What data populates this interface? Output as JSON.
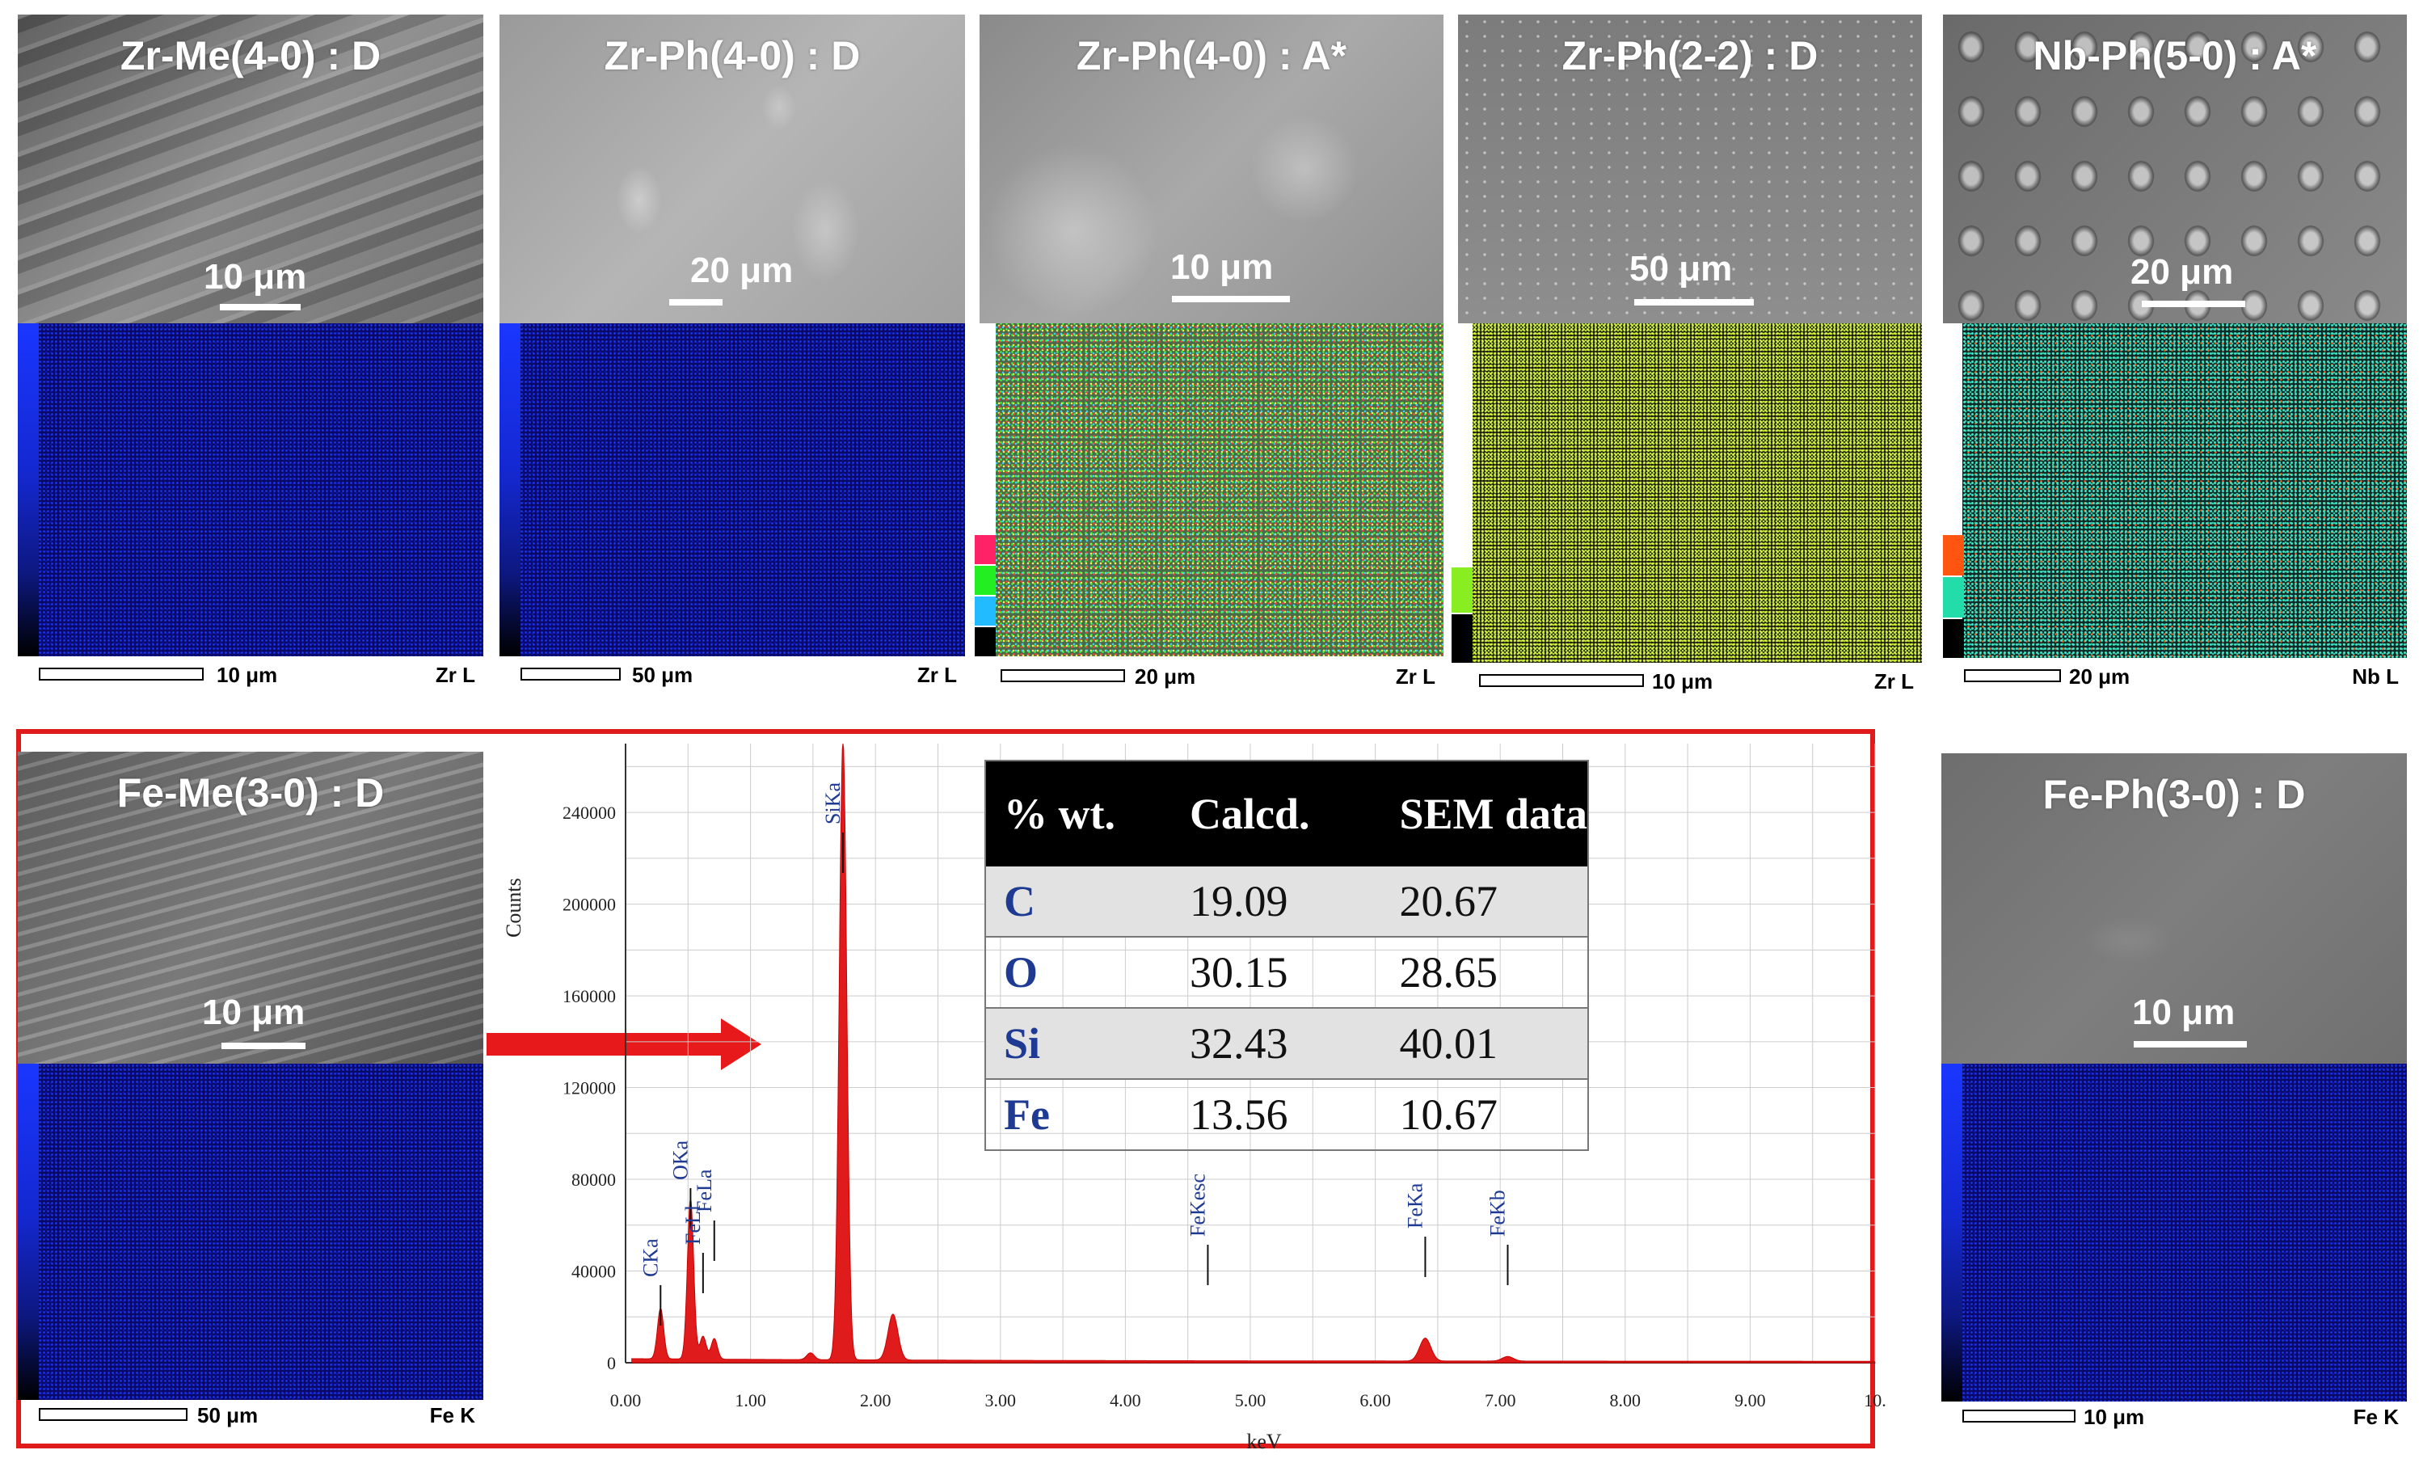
{
  "panels": [
    {
      "title": "Zr-Me(4-0) : D",
      "sem_scale": "10 μm",
      "map_scale": "10 μm",
      "element": "Zr L"
    },
    {
      "title": "Zr-Ph(4-0) : D",
      "sem_scale": "20 μm",
      "map_scale": "50 μm",
      "element": "Zr L"
    },
    {
      "title": "Zr-Ph(4-0) : A*",
      "sem_scale": "10 μm",
      "map_scale": "20 μm",
      "element": "Zr L"
    },
    {
      "title": "Zr-Ph(2-2) : D",
      "sem_scale": "50 μm",
      "map_scale": "10 μm",
      "element": "Zr L"
    },
    {
      "title": "Nb-Ph(5-0) : A*",
      "sem_scale": "20 μm",
      "map_scale": "20 μm",
      "element": "Nb L"
    },
    {
      "title": "Fe-Me(3-0) : D",
      "sem_scale": "10 μm",
      "map_scale": "50 μm",
      "element": "Fe K"
    },
    {
      "title": "Fe-Ph(3-0) : D",
      "sem_scale": "10 μm",
      "map_scale": "10 μm",
      "element": "Fe K"
    }
  ],
  "table": {
    "headers": [
      "% wt.",
      "Calcd.",
      "SEM data"
    ],
    "rows": [
      {
        "el": "C",
        "calcd": "19.09",
        "sem": "20.67"
      },
      {
        "el": "O",
        "calcd": "30.15",
        "sem": "28.65"
      },
      {
        "el": "Si",
        "calcd": "32.43",
        "sem": "40.01"
      },
      {
        "el": "Fe",
        "calcd": "13.56",
        "sem": "10.67"
      }
    ]
  },
  "spectrum": {
    "ylabel": "Counts",
    "xlabel": "keV",
    "yticks": [
      "0",
      "40000",
      "80000",
      "120000",
      "160000",
      "200000",
      "240000"
    ],
    "xticks": [
      "0.00",
      "1.00",
      "2.00",
      "3.00",
      "4.00",
      "5.00",
      "6.00",
      "7.00",
      "8.00",
      "9.00",
      "10."
    ],
    "peaks": [
      {
        "label": "CKa",
        "kev": 0.28,
        "counts": 22000
      },
      {
        "label": "OKa",
        "kev": 0.52,
        "counts": 70000
      },
      {
        "label": "FeLl",
        "kev": 0.62,
        "counts": 10000
      },
      {
        "label": "FeLa",
        "kev": 0.71,
        "counts": 9000
      },
      {
        "label": "SiKa",
        "kev": 1.74,
        "counts": 270000
      },
      {
        "label": "FeKesc",
        "kev": 4.66,
        "counts": 0
      },
      {
        "label": "FeKa",
        "kev": 6.4,
        "counts": 10000
      },
      {
        "label": "FeKb",
        "kev": 7.06,
        "counts": 2000
      }
    ]
  },
  "colors": {
    "frame": "#e01b1b",
    "spectrum": "#e01b1b",
    "element_text": "#1f3a93"
  }
}
